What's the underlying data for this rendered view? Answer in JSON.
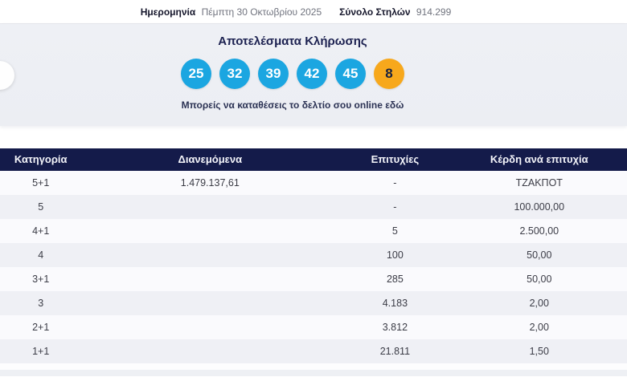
{
  "top_bar": {
    "date_label": "Ημερομηνία",
    "date_value": "Πέμπτη 30 Οκτωβρίου 2025",
    "columns_label": "Σύνολο Στηλών",
    "columns_value": "914.299"
  },
  "results": {
    "title": "Αποτελέσματα Κλήρωσης",
    "numbers": [
      "25",
      "32",
      "39",
      "42",
      "45"
    ],
    "bonus": "8",
    "note": "Μπορείς να καταθέσεις το δελτίο σου online εδώ",
    "colors": {
      "ball_blue": "#1ba6e1",
      "bonus_orange": "#f7a81c",
      "header_navy": "#141b4a",
      "section_bg": "#edeff4"
    }
  },
  "table": {
    "headers": {
      "category": "Κατηγορία",
      "distributed": "Διανεμόμενα",
      "winners": "Επιτυχίες",
      "prize": "Κέρδη ανά επιτυχία"
    },
    "rows": [
      {
        "category": "5+1",
        "distributed": "1.479.137,61",
        "winners": "-",
        "prize": "ΤΖΑΚΠΟΤ"
      },
      {
        "category": "5",
        "distributed": "",
        "winners": "-",
        "prize": "100.000,00"
      },
      {
        "category": "4+1",
        "distributed": "",
        "winners": "5",
        "prize": "2.500,00"
      },
      {
        "category": "4",
        "distributed": "",
        "winners": "100",
        "prize": "50,00"
      },
      {
        "category": "3+1",
        "distributed": "",
        "winners": "285",
        "prize": "50,00"
      },
      {
        "category": "3",
        "distributed": "",
        "winners": "4.183",
        "prize": "2,00"
      },
      {
        "category": "2+1",
        "distributed": "",
        "winners": "3.812",
        "prize": "2,00"
      },
      {
        "category": "1+1",
        "distributed": "",
        "winners": "21.811",
        "prize": "1,50"
      }
    ]
  }
}
